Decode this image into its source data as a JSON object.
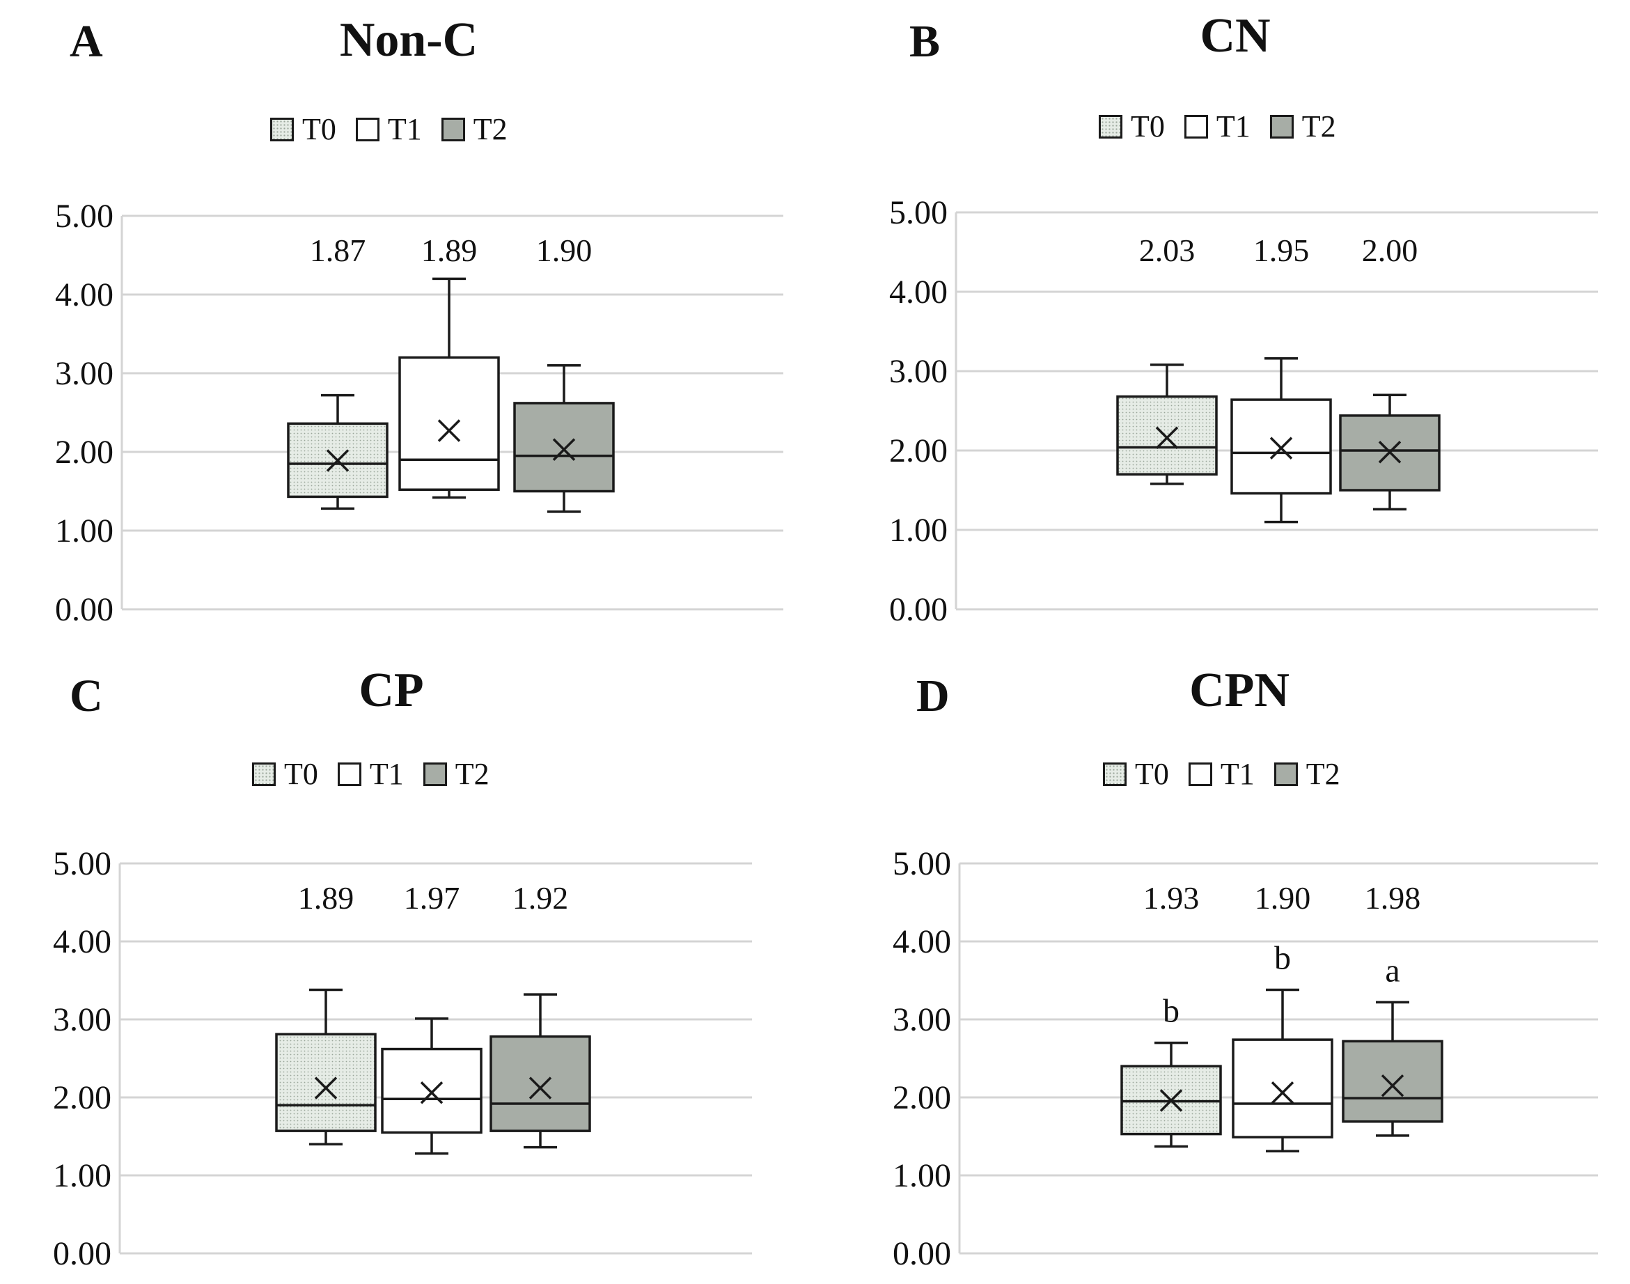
{
  "legend": {
    "labels": [
      "T0",
      "T1",
      "T2"
    ]
  },
  "colors": {
    "t0_fill": "#e6ece6",
    "t0_dots": "#9aa69a",
    "t1_fill": "#ffffff",
    "t2_fill": "#a7ada6",
    "grid": "#d4d4d4",
    "stroke": "#1a1a1a"
  },
  "chart_data": [
    {
      "panel": "A",
      "title": "Non-C",
      "type": "box",
      "ylim": [
        0,
        5
      ],
      "yticks": [
        "0.00",
        "1.00",
        "2.00",
        "3.00",
        "4.00",
        "5.00"
      ],
      "series": [
        {
          "name": "T0",
          "label": "1.87",
          "letter": "",
          "min": 1.28,
          "q1": 1.43,
          "median": 1.85,
          "q3": 2.36,
          "max": 2.72,
          "mean": 1.89
        },
        {
          "name": "T1",
          "label": "1.89",
          "letter": "",
          "min": 1.42,
          "q1": 1.52,
          "median": 1.9,
          "q3": 3.2,
          "max": 4.2,
          "mean": 2.27
        },
        {
          "name": "T2",
          "label": "1.90",
          "letter": "",
          "min": 1.24,
          "q1": 1.5,
          "median": 1.95,
          "q3": 2.62,
          "max": 3.1,
          "mean": 2.03
        }
      ]
    },
    {
      "panel": "B",
      "title": "CN",
      "type": "box",
      "ylim": [
        0,
        5
      ],
      "yticks": [
        "0.00",
        "1.00",
        "2.00",
        "3.00",
        "4.00",
        "5.00"
      ],
      "series": [
        {
          "name": "T0",
          "label": "2.03",
          "letter": "",
          "min": 1.58,
          "q1": 1.7,
          "median": 2.04,
          "q3": 2.68,
          "max": 3.08,
          "mean": 2.16
        },
        {
          "name": "T1",
          "label": "1.95",
          "letter": "",
          "min": 1.1,
          "q1": 1.46,
          "median": 1.97,
          "q3": 2.64,
          "max": 3.16,
          "mean": 2.03
        },
        {
          "name": "T2",
          "label": "2.00",
          "letter": "",
          "min": 1.26,
          "q1": 1.5,
          "median": 2.0,
          "q3": 2.44,
          "max": 2.7,
          "mean": 1.98
        }
      ]
    },
    {
      "panel": "C",
      "title": "CP",
      "type": "box",
      "ylim": [
        0,
        5
      ],
      "yticks": [
        "0.00",
        "1.00",
        "2.00",
        "3.00",
        "4.00",
        "5.00"
      ],
      "series": [
        {
          "name": "T0",
          "label": "1.89",
          "letter": "",
          "min": 1.4,
          "q1": 1.57,
          "median": 1.9,
          "q3": 2.81,
          "max": 3.38,
          "mean": 2.12
        },
        {
          "name": "T1",
          "label": "1.97",
          "letter": "",
          "min": 1.28,
          "q1": 1.55,
          "median": 1.98,
          "q3": 2.62,
          "max": 3.01,
          "mean": 2.06
        },
        {
          "name": "T2",
          "label": "1.92",
          "letter": "",
          "min": 1.36,
          "q1": 1.57,
          "median": 1.92,
          "q3": 2.78,
          "max": 3.32,
          "mean": 2.12
        }
      ]
    },
    {
      "panel": "D",
      "title": "CPN",
      "type": "box",
      "ylim": [
        0,
        5
      ],
      "yticks": [
        "0.00",
        "1.00",
        "2.00",
        "3.00",
        "4.00",
        "5.00"
      ],
      "series": [
        {
          "name": "T0",
          "label": "1.93",
          "letter": "b",
          "min": 1.37,
          "q1": 1.53,
          "median": 1.95,
          "q3": 2.4,
          "max": 2.7,
          "mean": 1.96
        },
        {
          "name": "T1",
          "label": "1.90",
          "letter": "b",
          "min": 1.31,
          "q1": 1.49,
          "median": 1.92,
          "q3": 2.74,
          "max": 3.38,
          "mean": 2.06
        },
        {
          "name": "T2",
          "label": "1.98",
          "letter": "a",
          "min": 1.51,
          "q1": 1.69,
          "median": 1.99,
          "q3": 2.72,
          "max": 3.22,
          "mean": 2.15
        }
      ]
    }
  ]
}
